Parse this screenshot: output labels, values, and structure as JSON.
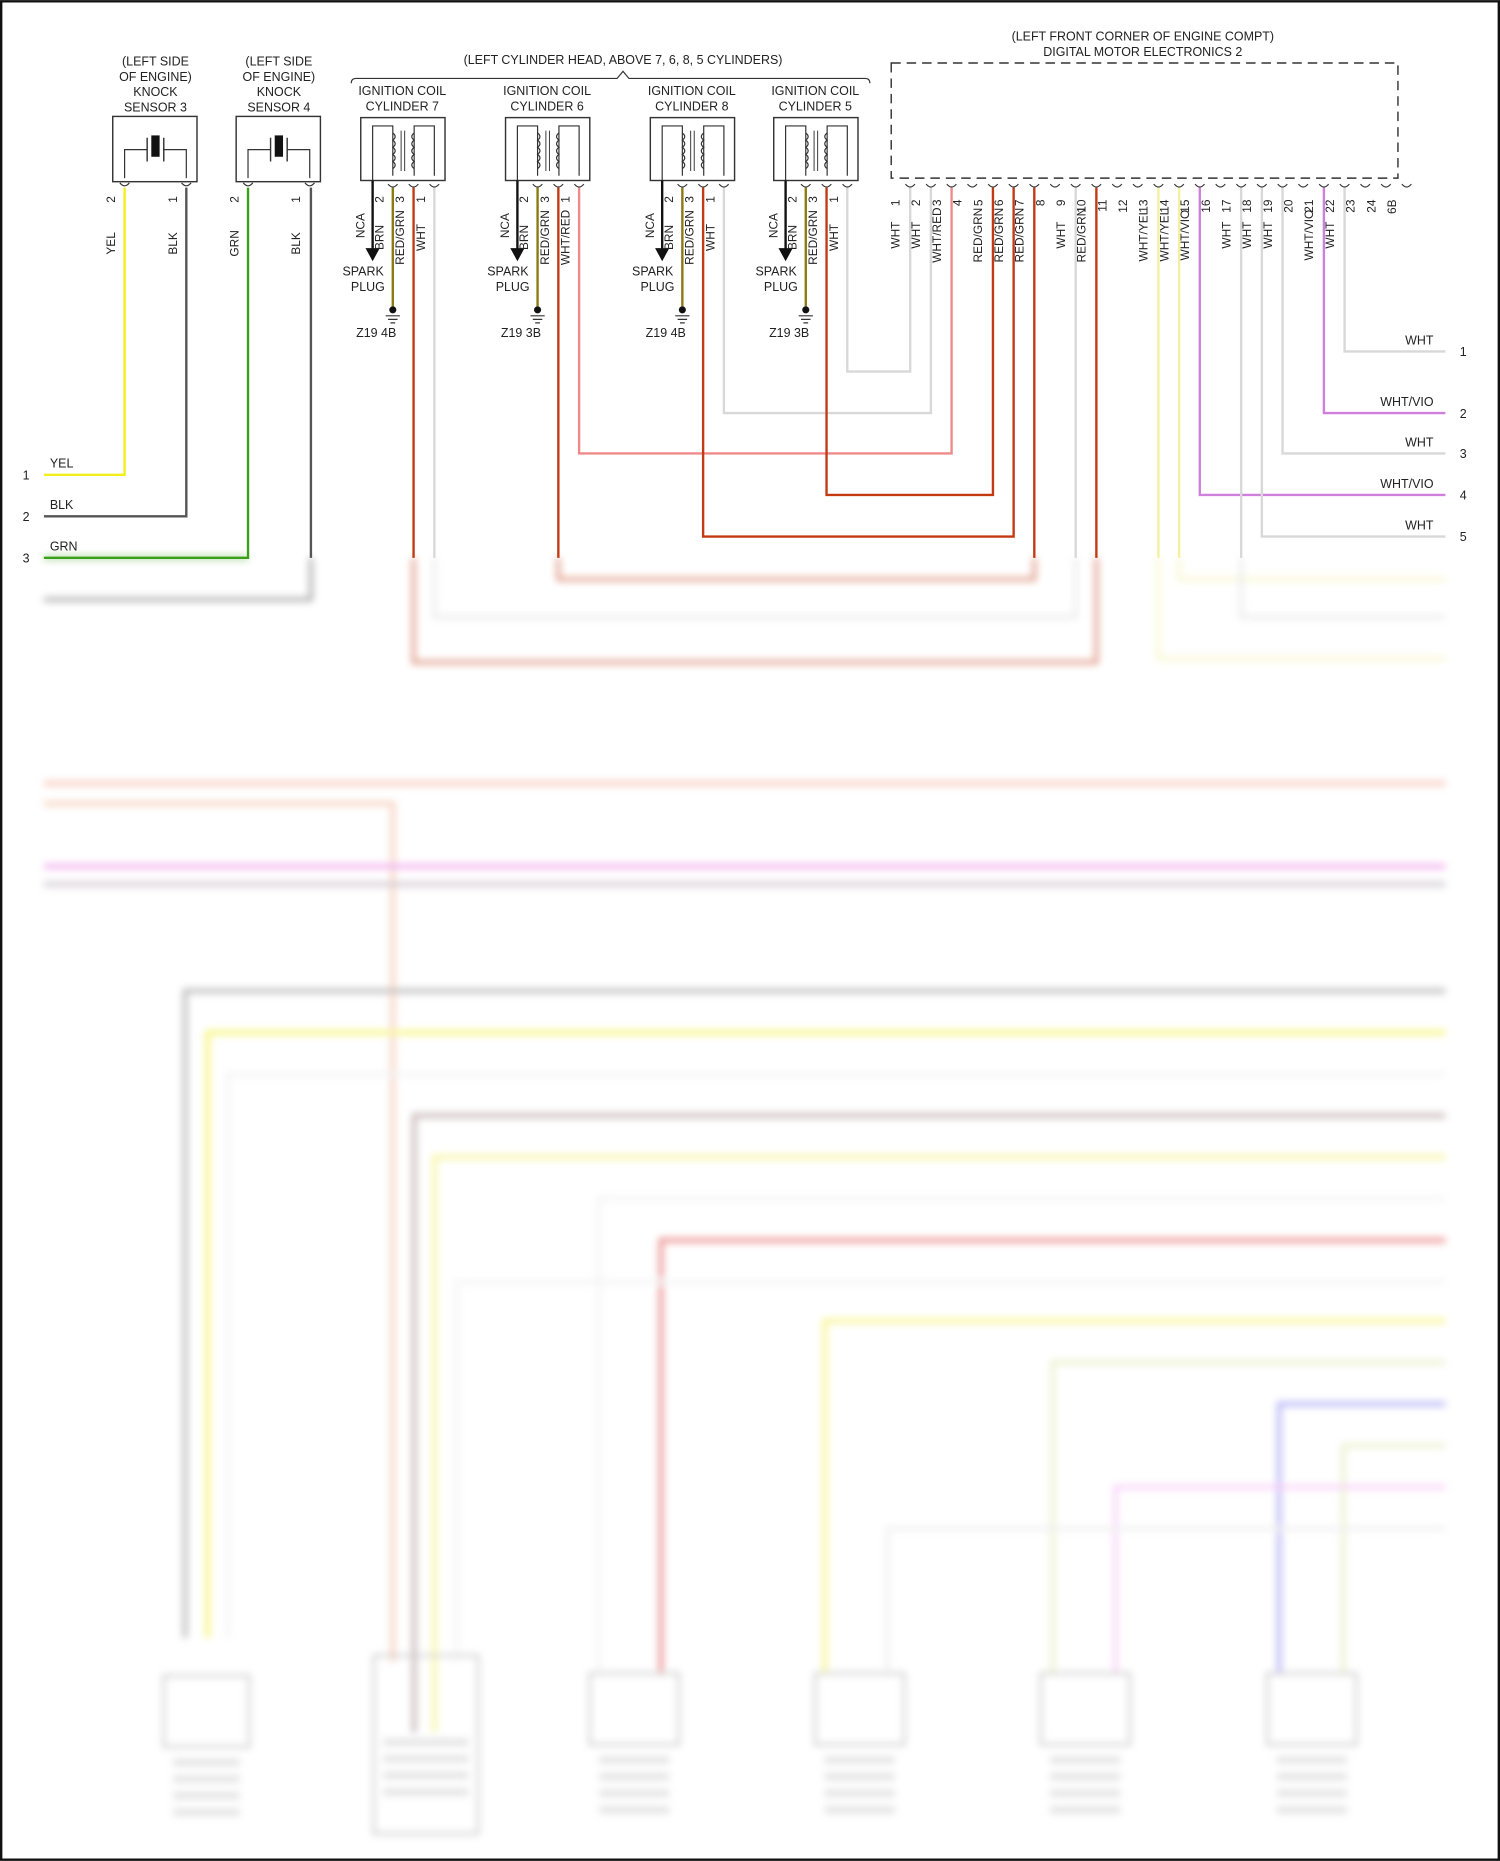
{
  "colors": {
    "YEL": "#f2ee1c",
    "BLK": "#555555",
    "GRN": "#3aa01a",
    "BRN": "#8a7a10",
    "RED/GRN": "#c33a12",
    "WHT": "#d8d8d8",
    "WHT/RED": "#ef8a8a",
    "WHT/YEL": "#f4f0a0",
    "WHT/VIO": "#cf7fdc",
    "NCA": "#111111"
  },
  "knock_sensors": [
    {
      "title": [
        "(LEFT SIDE",
        "OF ENGINE)",
        "KNOCK",
        "SENSOR 3"
      ],
      "pins": [
        {
          "num": "2",
          "color": "YEL"
        },
        {
          "num": "1",
          "color": "BLK"
        }
      ]
    },
    {
      "title": [
        "(LEFT SIDE",
        "OF ENGINE)",
        "KNOCK",
        "SENSOR 4"
      ],
      "pins": [
        {
          "num": "2",
          "color": "GRN"
        },
        {
          "num": "1",
          "color": "BLK"
        }
      ]
    }
  ],
  "coil_group_label": "(LEFT CYLINDER HEAD, ABOVE 7, 6, 8, 5 CYLINDERS)",
  "coils": [
    {
      "title": [
        "IGNITION COIL",
        "CYLINDER 7"
      ],
      "nca": "NCA",
      "spark": [
        "SPARK",
        "PLUG"
      ],
      "ground": "Z19 4B",
      "pins": [
        {
          "num": "2",
          "color": "BRN"
        },
        {
          "num": "3",
          "color": "RED/GRN"
        },
        {
          "num": "1",
          "color": "WHT"
        }
      ]
    },
    {
      "title": [
        "IGNITION COIL",
        "CYLINDER 6"
      ],
      "nca": "NCA",
      "spark": [
        "SPARK",
        "PLUG"
      ],
      "ground": "Z19 3B",
      "pins": [
        {
          "num": "2",
          "color": "BRN"
        },
        {
          "num": "3",
          "color": "RED/GRN"
        },
        {
          "num": "1",
          "color": "WHT/RED"
        }
      ]
    },
    {
      "title": [
        "IGNITION COIL",
        "CYLINDER 8"
      ],
      "nca": "NCA",
      "spark": [
        "SPARK",
        "PLUG"
      ],
      "ground": "Z19 4B",
      "pins": [
        {
          "num": "2",
          "color": "BRN"
        },
        {
          "num": "3",
          "color": "RED/GRN"
        },
        {
          "num": "1",
          "color": "WHT"
        }
      ]
    },
    {
      "title": [
        "IGNITION COIL",
        "CYLINDER 5"
      ],
      "nca": "NCA",
      "spark": [
        "SPARK",
        "PLUG"
      ],
      "ground": "Z19 3B",
      "pins": [
        {
          "num": "2",
          "color": "BRN"
        },
        {
          "num": "3",
          "color": "RED/GRN"
        },
        {
          "num": "1",
          "color": "WHT"
        }
      ]
    }
  ],
  "dme": {
    "location": "(LEFT FRONT CORNER OF ENGINE COMPT)",
    "name": "DIGITAL MOTOR ELECTRONICS 2",
    "pins": [
      {
        "num": "1",
        "color": "WHT"
      },
      {
        "num": "2",
        "color": "WHT"
      },
      {
        "num": "3",
        "color": "WHT/RED"
      },
      {
        "num": "4",
        "color": ""
      },
      {
        "num": "5",
        "color": "RED/GRN"
      },
      {
        "num": "6",
        "color": "RED/GRN"
      },
      {
        "num": "7",
        "color": "RED/GRN"
      },
      {
        "num": "8",
        "color": ""
      },
      {
        "num": "9",
        "color": "WHT"
      },
      {
        "num": "10",
        "color": "RED/GRN"
      },
      {
        "num": "11",
        "color": ""
      },
      {
        "num": "12",
        "color": ""
      },
      {
        "num": "13",
        "color": "WHT/YEL"
      },
      {
        "num": "14",
        "color": "WHT/YEL"
      },
      {
        "num": "15",
        "color": "WHT/VIO"
      },
      {
        "num": "16",
        "color": ""
      },
      {
        "num": "17",
        "color": "WHT"
      },
      {
        "num": "18",
        "color": "WHT"
      },
      {
        "num": "19",
        "color": "WHT"
      },
      {
        "num": "20",
        "color": ""
      },
      {
        "num": "21",
        "color": "WHT/VIO"
      },
      {
        "num": "22",
        "color": "WHT"
      },
      {
        "num": "23",
        "color": ""
      },
      {
        "num": "24",
        "color": ""
      },
      {
        "num": "6B",
        "color": ""
      }
    ]
  },
  "left_connector": [
    {
      "num": "1",
      "color": "YEL"
    },
    {
      "num": "2",
      "color": "BLK"
    },
    {
      "num": "3",
      "color": "GRN"
    }
  ],
  "right_connector": [
    {
      "num": "1",
      "color": "WHT"
    },
    {
      "num": "2",
      "color": "WHT/VIO"
    },
    {
      "num": "3",
      "color": "WHT"
    },
    {
      "num": "4",
      "color": "WHT/VIO"
    },
    {
      "num": "5",
      "color": "WHT"
    }
  ]
}
